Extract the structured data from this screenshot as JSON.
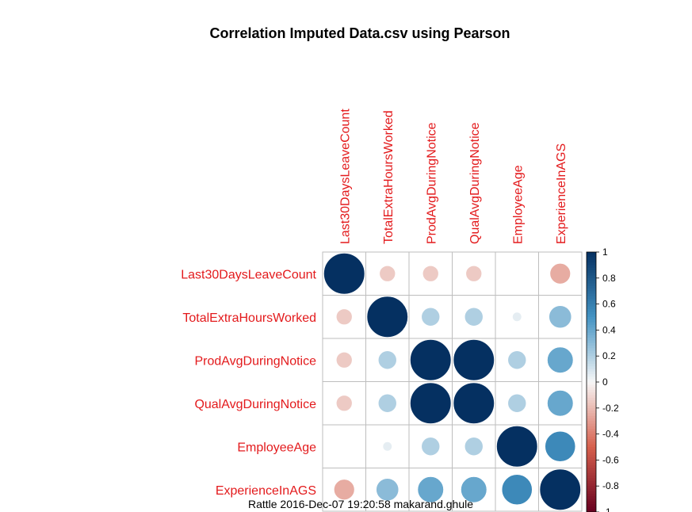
{
  "footer": "Rattle 2016-Dec-07 19:20:58 makarand.ghule",
  "chart_data": {
    "type": "heatmap",
    "style": "corrplot-circle",
    "title": "Correlation Imputed Data.csv using Pearson",
    "variables": [
      "Last30DaysLeaveCount",
      "TotalExtraHoursWorked",
      "ProdAvgDuringNotice",
      "QualAvgDuringNotice",
      "EmployeeAge",
      "ExperienceInAGS"
    ],
    "matrix": [
      [
        1.0,
        -0.15,
        -0.15,
        -0.15,
        0.0,
        -0.25
      ],
      [
        -0.15,
        1.0,
        0.2,
        0.2,
        0.05,
        0.3
      ],
      [
        -0.15,
        0.2,
        1.0,
        1.0,
        0.2,
        0.4
      ],
      [
        -0.15,
        0.2,
        1.0,
        1.0,
        0.2,
        0.4
      ],
      [
        0.0,
        0.05,
        0.2,
        0.2,
        1.0,
        0.55
      ],
      [
        -0.25,
        0.3,
        0.4,
        0.4,
        0.55,
        1.0
      ]
    ],
    "colorbar": {
      "range": [
        -1,
        1
      ],
      "ticks": [
        "1",
        "0.8",
        "0.6",
        "0.4",
        "0.2",
        "0",
        "-0.2",
        "-0.4",
        "-0.6",
        "-0.8",
        "-1"
      ]
    },
    "colors": {
      "negative_end": "#67001f",
      "negative_mid": "#d6604d",
      "neutral": "#f7f7f7",
      "positive_mid": "#4393c3",
      "positive_end": "#053061",
      "label": "#e31a1c",
      "grid": "#bebebe"
    }
  }
}
